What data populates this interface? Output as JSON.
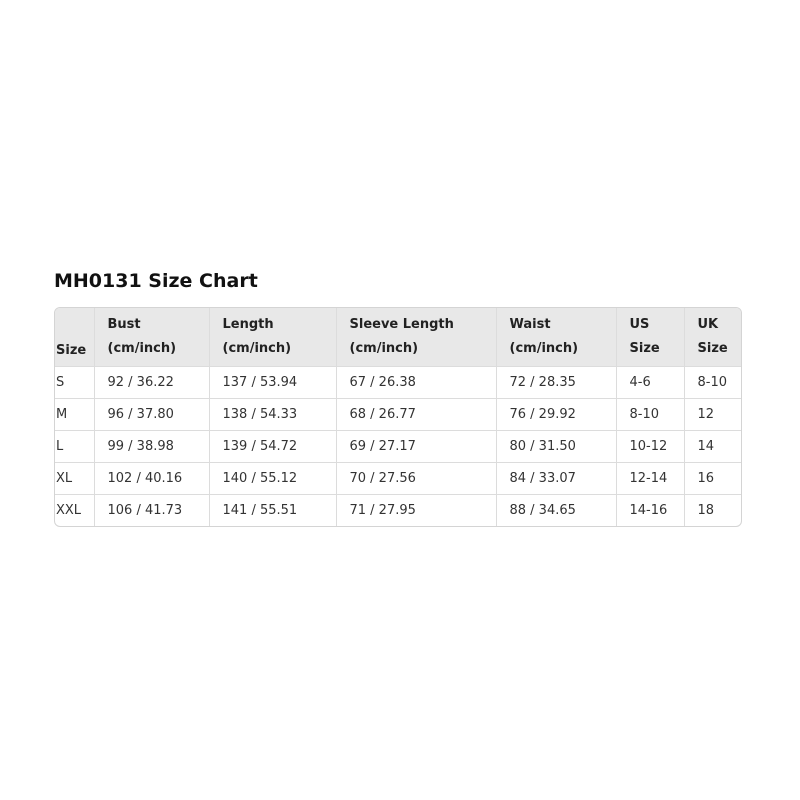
{
  "title": "MH0131 Size Chart",
  "table": {
    "headers": [
      {
        "line1": "",
        "line2": "Size"
      },
      {
        "line1": "Bust",
        "line2": "(cm/inch)"
      },
      {
        "line1": "Length",
        "line2": "(cm/inch)"
      },
      {
        "line1": "Sleeve Length",
        "line2": "(cm/inch)"
      },
      {
        "line1": "Waist",
        "line2": "(cm/inch)"
      },
      {
        "line1": "US",
        "line2": "Size"
      },
      {
        "line1": "UK",
        "line2": "Size"
      }
    ],
    "rows": [
      [
        "S",
        "92 / 36.22",
        "137 / 53.94",
        "67 / 26.38",
        "72 / 28.35",
        "4-6",
        "8-10"
      ],
      [
        "M",
        "96 / 37.80",
        "138 / 54.33",
        "68 / 26.77",
        "76 / 29.92",
        "8-10",
        "12"
      ],
      [
        "L",
        "99 / 38.98",
        "139 / 54.72",
        "69 / 27.17",
        "80 / 31.50",
        "10-12",
        "14"
      ],
      [
        "XL",
        "102 / 40.16",
        "140 / 55.12",
        "70 / 27.56",
        "84 / 33.07",
        "12-14",
        "16"
      ],
      [
        "XXL",
        "106 / 41.73",
        "141 / 55.51",
        "71 / 27.95",
        "88 / 34.65",
        "14-16",
        "18"
      ]
    ]
  }
}
